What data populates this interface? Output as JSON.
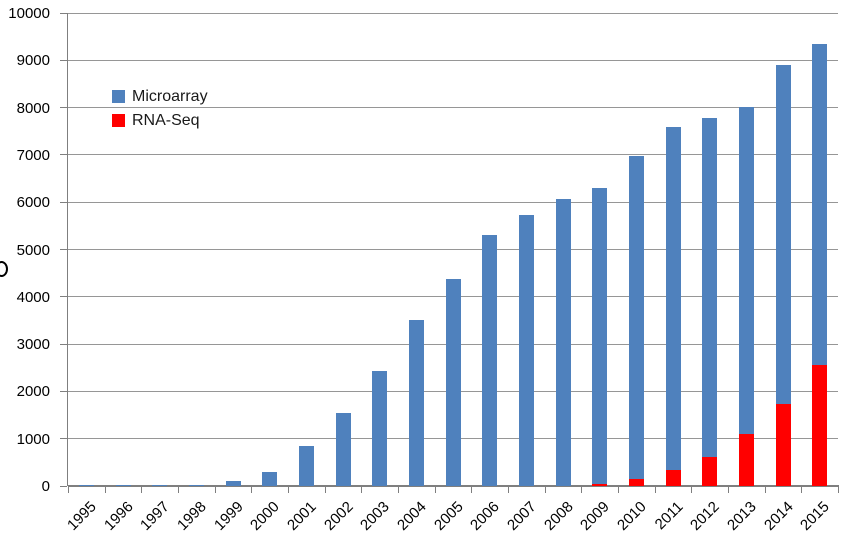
{
  "chart_data": {
    "type": "bar",
    "stacked": true,
    "title": "",
    "xlabel": "",
    "ylabel": "",
    "categories": [
      "1995",
      "1996",
      "1997",
      "1998",
      "1999",
      "2000",
      "2001",
      "2002",
      "2003",
      "2004",
      "2005",
      "2006",
      "2007",
      "2008",
      "2009",
      "2010",
      "2011",
      "2012",
      "2013",
      "2014",
      "2015"
    ],
    "series": [
      {
        "name": "Microarray",
        "color": "#4F81BD",
        "values": [
          25,
          30,
          30,
          30,
          100,
          300,
          840,
          1550,
          2430,
          3510,
          4380,
          5310,
          5730,
          6060,
          6260,
          6820,
          7260,
          7170,
          6910,
          7170,
          6800
        ]
      },
      {
        "name": "RNA-Seq",
        "color": "#FF0000",
        "values": [
          0,
          0,
          0,
          0,
          0,
          0,
          0,
          0,
          0,
          0,
          0,
          0,
          0,
          0,
          40,
          150,
          340,
          620,
          1100,
          1730,
          2550
        ]
      }
    ],
    "stack_bottom_series": "RNA-Seq",
    "stacked_totals": [
      25,
      30,
      30,
      30,
      100,
      300,
      840,
      1550,
      2430,
      3510,
      4380,
      5310,
      5730,
      6060,
      6300,
      6970,
      7600,
      7790,
      8010,
      8900,
      9350
    ],
    "ylim": [
      0,
      10000
    ],
    "ytick_step": 1000,
    "y_tick_labels": [
      "0",
      "1000",
      "2000",
      "3000",
      "4000",
      "5000",
      "6000",
      "7000",
      "8000",
      "9000",
      "10000"
    ],
    "grid": true,
    "legend_position": "upper-left-inside"
  },
  "legend": {
    "items": [
      {
        "label": "Microarray",
        "color": "#4F81BD"
      },
      {
        "label": "RNA-Seq",
        "color": "#FF0000"
      }
    ]
  },
  "colors": {
    "microarray": "#4F81BD",
    "rnaseq": "#FF0000",
    "gridline": "#969696",
    "axis": "#7F7F7F",
    "text": "#000000",
    "background": "#FFFFFF"
  }
}
